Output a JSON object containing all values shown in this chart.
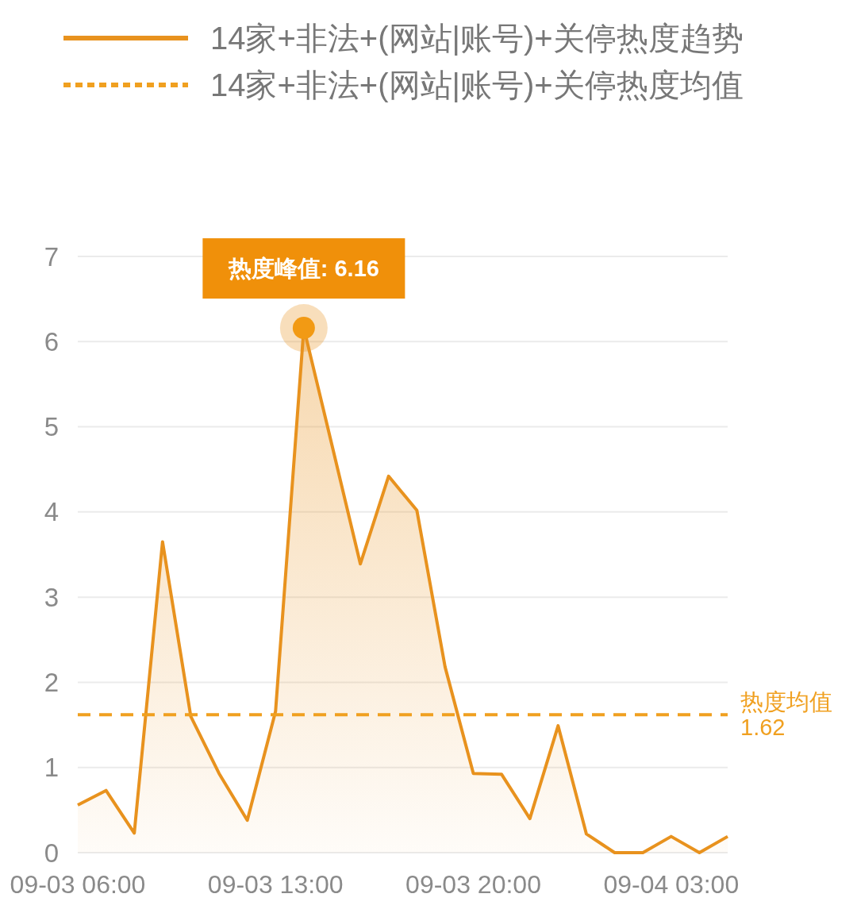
{
  "chart_data": {
    "type": "area",
    "categories": [
      "09-03 06:00",
      null,
      null,
      null,
      null,
      null,
      null,
      "09-03 13:00",
      null,
      null,
      null,
      null,
      null,
      null,
      "09-03 20:00",
      null,
      null,
      null,
      null,
      null,
      null,
      "09-04 03:00",
      null,
      null
    ],
    "ylim": [
      0,
      7
    ],
    "yticks": [
      0,
      1,
      2,
      3,
      4,
      5,
      6,
      7
    ],
    "grid": "y",
    "legend": "top",
    "series": [
      {
        "name": "14家+非法+(网站|账号)+关停热度趋势",
        "color": "#e8921e",
        "values": [
          0.56,
          0.73,
          0.23,
          3.65,
          1.6,
          0.93,
          0.38,
          1.66,
          6.16,
          4.78,
          3.39,
          4.42,
          4.02,
          2.18,
          0.93,
          0.92,
          0.4,
          1.49,
          0.22,
          0,
          0,
          0.19,
          0,
          0.19
        ]
      },
      {
        "name": "14家+非法+(网站|账号)+关停热度均值",
        "type": "line",
        "color": "#f0a020",
        "line_style": "dashed",
        "values": [
          1.62,
          1.62,
          1.62,
          1.62,
          1.62,
          1.62,
          1.62,
          1.62,
          1.62,
          1.62,
          1.62,
          1.62,
          1.62,
          1.62,
          1.62,
          1.62,
          1.62,
          1.62,
          1.62,
          1.62,
          1.62,
          1.62,
          1.62,
          1.62
        ]
      }
    ],
    "annotations": [
      {
        "text": "热度峰值: 6.16",
        "y": 6.16
      },
      "热度均值\n1.62"
    ]
  }
}
